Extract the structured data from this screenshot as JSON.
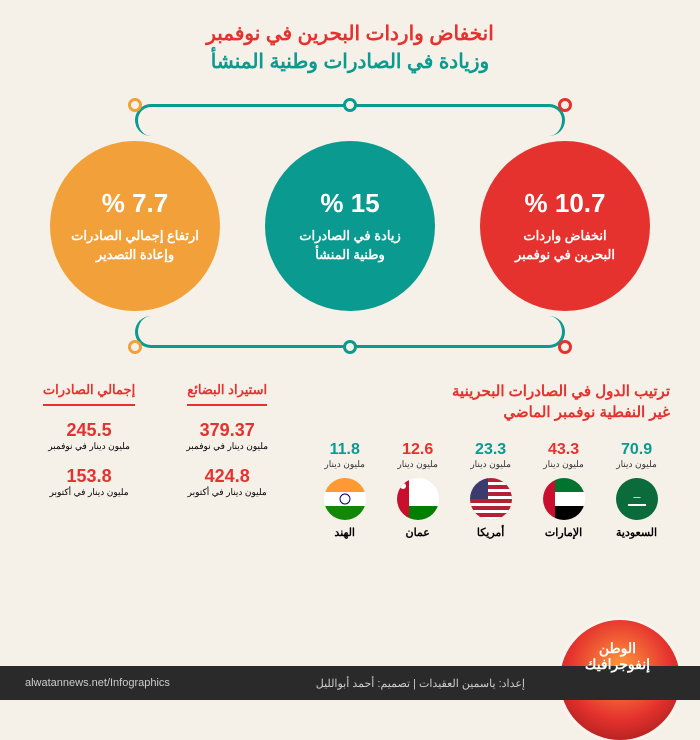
{
  "colors": {
    "red": "#e5322e",
    "teal": "#0a9a8f",
    "orange": "#f2a13a",
    "dark": "#2a2a2a",
    "bg": "#f5f0e8"
  },
  "title_line1": "انخفاض واردات البحرين في نوفمبر",
  "title_line2": "وزيادة في الصادرات وطنية المنشأ",
  "circles": [
    {
      "pct": "% 10.7",
      "label": "انخفاض واردات\nالبحرين في نوفمبر",
      "color": "#e5322e"
    },
    {
      "pct": "% 15",
      "label": "زيادة في الصادرات\nوطنية المنشأ",
      "color": "#0a9a8f"
    },
    {
      "pct": "% 7.7",
      "label": "ارتفاع إجمالي الصادرات\nوإعادة التصدير",
      "color": "#f2a13a"
    }
  ],
  "ranking_title": "ترتيب الدول في الصادرات البحرينية\nغير النفطية نوفمبر الماضي",
  "unit_label": "مليون دينار",
  "countries": [
    {
      "name": "السعودية",
      "value": "70.9",
      "color": "#0a9a8f",
      "flag": "sa"
    },
    {
      "name": "الإمارات",
      "value": "43.3",
      "color": "#e5322e",
      "flag": "ae"
    },
    {
      "name": "أمريكا",
      "value": "23.3",
      "color": "#0a9a8f",
      "flag": "us"
    },
    {
      "name": "عمان",
      "value": "12.6",
      "color": "#e5322e",
      "flag": "om"
    },
    {
      "name": "الهند",
      "value": "11.8",
      "color": "#0a9a8f",
      "flag": "in"
    }
  ],
  "stats": [
    {
      "header": "استيراد البضائع",
      "color": "#e5322e",
      "rows": [
        {
          "value": "379.37",
          "label": "مليون دينار في نوفمبر"
        },
        {
          "value": "424.8",
          "label": "مليون دينار في أكتوبر"
        }
      ]
    },
    {
      "header": "إجمالي الصادرات",
      "color": "#e5322e",
      "rows": [
        {
          "value": "245.5",
          "label": "مليون دينار في نوفمبر"
        },
        {
          "value": "153.8",
          "label": "مليون دينار في أكتوبر"
        }
      ]
    }
  ],
  "brand_line1": "الوطن",
  "brand_line2": "إنفوجرافيك",
  "credits": "إعداد: ياسمين العقيدات | تصميم: أحمد أبوالليل",
  "site": "alwatannews.net/Infographics"
}
